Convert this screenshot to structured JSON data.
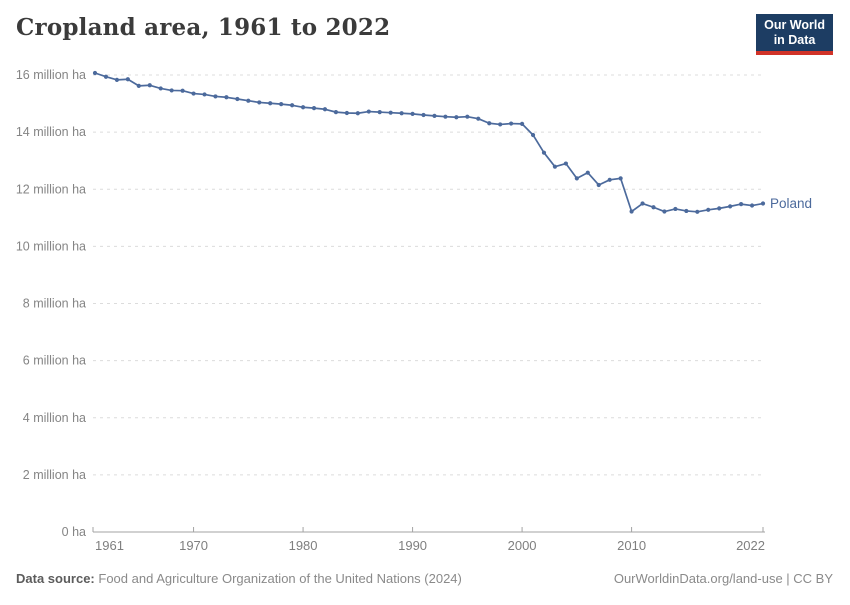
{
  "header": {
    "title": "Cropland area, 1961 to 2022",
    "logo": {
      "line1": "Our World",
      "line2": "in Data",
      "bg": "#1d3d63",
      "accent": "#d13328"
    }
  },
  "chart_data": {
    "type": "line",
    "title": "Cropland area, 1961 to 2022",
    "xlabel": "",
    "ylabel": "",
    "unit": "million ha",
    "ylim": [
      0,
      16
    ],
    "grid": "horizontal-dashed",
    "legend_position": "line-end-label",
    "colors": {
      "line": "#4C6A9C",
      "grid": "#dcdcdc",
      "axis": "#a3a3a3",
      "tick_text": "#858585"
    },
    "y_ticks": [
      {
        "value": 16,
        "label": "16 million ha"
      },
      {
        "value": 14,
        "label": "14 million ha"
      },
      {
        "value": 12,
        "label": "12 million ha"
      },
      {
        "value": 10,
        "label": "10 million ha"
      },
      {
        "value": 8,
        "label": "8 million ha"
      },
      {
        "value": 6,
        "label": "6 million ha"
      },
      {
        "value": 4,
        "label": "4 million ha"
      },
      {
        "value": 2,
        "label": "2 million ha"
      },
      {
        "value": 0,
        "label": "0 ha"
      }
    ],
    "x_ticks": [
      1961,
      1970,
      1980,
      1990,
      2000,
      2010,
      2022
    ],
    "series": [
      {
        "name": "Poland",
        "color": "#4C6A9C",
        "years": [
          1961,
          1962,
          1963,
          1964,
          1965,
          1966,
          1967,
          1968,
          1969,
          1970,
          1971,
          1972,
          1973,
          1974,
          1975,
          1976,
          1977,
          1978,
          1979,
          1980,
          1981,
          1982,
          1983,
          1984,
          1985,
          1986,
          1987,
          1988,
          1989,
          1990,
          1991,
          1992,
          1993,
          1994,
          1995,
          1996,
          1997,
          1998,
          1999,
          2000,
          2001,
          2002,
          2003,
          2004,
          2005,
          2006,
          2007,
          2008,
          2009,
          2010,
          2011,
          2012,
          2013,
          2014,
          2015,
          2016,
          2017,
          2018,
          2019,
          2020,
          2021,
          2022
        ],
        "values_million_ha": [
          16.07,
          15.94,
          15.83,
          15.85,
          15.62,
          15.64,
          15.53,
          15.46,
          15.45,
          15.35,
          15.32,
          15.25,
          15.22,
          15.16,
          15.1,
          15.04,
          15.01,
          14.98,
          14.94,
          14.87,
          14.84,
          14.8,
          14.7,
          14.67,
          14.66,
          14.72,
          14.7,
          14.68,
          14.66,
          14.64,
          14.6,
          14.57,
          14.54,
          14.52,
          14.54,
          14.47,
          14.31,
          14.27,
          14.3,
          14.29,
          13.9,
          13.28,
          12.79,
          12.9,
          12.38,
          12.58,
          12.15,
          12.33,
          12.38,
          11.22,
          11.5,
          11.37,
          11.22,
          11.31,
          11.24,
          11.21,
          11.28,
          11.33,
          11.4,
          11.48,
          11.43,
          11.5
        ]
      }
    ]
  },
  "footer": {
    "source_label": "Data source:",
    "source_text": "Food and Agriculture Organization of the United Nations (2024)",
    "url_and_license": "OurWorldinData.org/land-use | CC BY"
  }
}
